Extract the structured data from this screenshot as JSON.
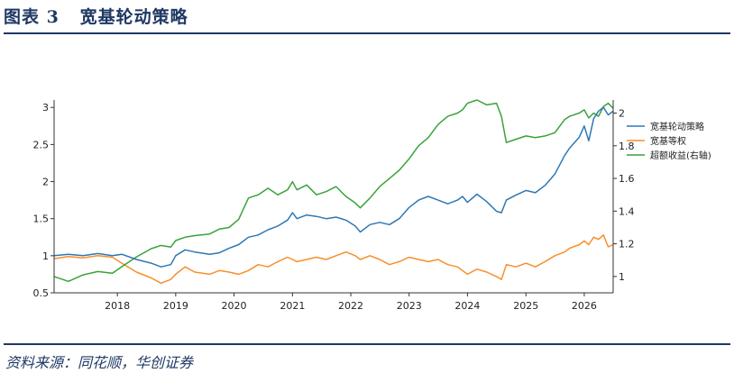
{
  "header": {
    "title": "图表 3   宽基轮动策略"
  },
  "footer": {
    "source": "资料来源：同花顺，华创证券"
  },
  "colors": {
    "accent": "#1f3864",
    "strategy": "#2e78b4",
    "equal_weight": "#f98e2b",
    "excess": "#3aa23a"
  },
  "chart_data": {
    "type": "line",
    "title": "",
    "xlabel": "",
    "ylabel": "",
    "x_ticks": [
      "2018",
      "2019",
      "2020",
      "2021",
      "2022",
      "2023",
      "2024",
      "2025",
      "2026"
    ],
    "x_range": [
      "2017-01-01",
      "2026-08-01"
    ],
    "left_axis": {
      "range": [
        0.5,
        3.1
      ],
      "ticks": [
        "0.5",
        "1",
        "1.5",
        "2",
        "2.5",
        "3"
      ]
    },
    "right_axis": {
      "range": [
        0.9,
        2.08
      ],
      "ticks": [
        "1",
        "1.2",
        "1.4",
        "1.6",
        "1.8",
        "2",
        "2",
        "2"
      ]
    },
    "legend_position": "right",
    "grid": false,
    "series": [
      {
        "name": "宽基轮动策略",
        "axis": "left",
        "color": "#2e78b4",
        "points": [
          [
            "2017-01-01",
            1.0
          ],
          [
            "2017-04-01",
            1.02
          ],
          [
            "2017-07-01",
            1.0
          ],
          [
            "2017-10-01",
            1.03
          ],
          [
            "2018-01-01",
            1.0
          ],
          [
            "2018-03-01",
            1.02
          ],
          [
            "2018-06-01",
            0.95
          ],
          [
            "2018-09-01",
            0.9
          ],
          [
            "2018-11-01",
            0.85
          ],
          [
            "2019-01-01",
            0.88
          ],
          [
            "2019-02-01",
            1.0
          ],
          [
            "2019-04-01",
            1.08
          ],
          [
            "2019-06-01",
            1.05
          ],
          [
            "2019-09-01",
            1.02
          ],
          [
            "2019-11-01",
            1.04
          ],
          [
            "2020-01-01",
            1.1
          ],
          [
            "2020-03-01",
            1.15
          ],
          [
            "2020-05-01",
            1.25
          ],
          [
            "2020-07-01",
            1.28
          ],
          [
            "2020-09-01",
            1.35
          ],
          [
            "2020-11-01",
            1.4
          ],
          [
            "2021-01-01",
            1.48
          ],
          [
            "2021-02-01",
            1.58
          ],
          [
            "2021-03-01",
            1.5
          ],
          [
            "2021-05-01",
            1.55
          ],
          [
            "2021-07-01",
            1.53
          ],
          [
            "2021-09-01",
            1.5
          ],
          [
            "2021-11-01",
            1.52
          ],
          [
            "2022-01-01",
            1.48
          ],
          [
            "2022-03-01",
            1.4
          ],
          [
            "2022-04-01",
            1.32
          ],
          [
            "2022-06-01",
            1.42
          ],
          [
            "2022-08-01",
            1.45
          ],
          [
            "2022-10-01",
            1.42
          ],
          [
            "2022-12-01",
            1.5
          ],
          [
            "2023-02-01",
            1.65
          ],
          [
            "2023-04-01",
            1.75
          ],
          [
            "2023-06-01",
            1.8
          ],
          [
            "2023-08-01",
            1.75
          ],
          [
            "2023-10-01",
            1.7
          ],
          [
            "2023-12-01",
            1.75
          ],
          [
            "2024-01-01",
            1.8
          ],
          [
            "2024-02-01",
            1.72
          ],
          [
            "2024-04-01",
            1.83
          ],
          [
            "2024-06-01",
            1.73
          ],
          [
            "2024-08-01",
            1.6
          ],
          [
            "2024-09-01",
            1.58
          ],
          [
            "2024-10-01",
            1.75
          ],
          [
            "2024-12-01",
            1.82
          ],
          [
            "2025-02-01",
            1.88
          ],
          [
            "2025-04-01",
            1.85
          ],
          [
            "2025-06-01",
            1.95
          ],
          [
            "2025-08-01",
            2.1
          ],
          [
            "2025-10-01",
            2.35
          ],
          [
            "2025-11-01",
            2.45
          ],
          [
            "2026-01-01",
            2.6
          ],
          [
            "2026-02-01",
            2.75
          ],
          [
            "2026-03-01",
            2.55
          ],
          [
            "2026-04-01",
            2.85
          ],
          [
            "2026-05-01",
            2.95
          ],
          [
            "2026-06-01",
            3.0
          ],
          [
            "2026-07-01",
            2.9
          ],
          [
            "2026-08-01",
            2.95
          ]
        ]
      },
      {
        "name": "宽基等权",
        "axis": "left",
        "color": "#f98e2b",
        "points": [
          [
            "2017-01-01",
            0.96
          ],
          [
            "2017-04-01",
            0.99
          ],
          [
            "2017-07-01",
            0.97
          ],
          [
            "2017-10-01",
            1.0
          ],
          [
            "2018-01-01",
            0.98
          ],
          [
            "2018-03-01",
            0.9
          ],
          [
            "2018-06-01",
            0.78
          ],
          [
            "2018-09-01",
            0.7
          ],
          [
            "2018-11-01",
            0.63
          ],
          [
            "2019-01-01",
            0.68
          ],
          [
            "2019-02-01",
            0.75
          ],
          [
            "2019-04-01",
            0.85
          ],
          [
            "2019-06-01",
            0.78
          ],
          [
            "2019-09-01",
            0.75
          ],
          [
            "2019-11-01",
            0.8
          ],
          [
            "2020-01-01",
            0.78
          ],
          [
            "2020-03-01",
            0.75
          ],
          [
            "2020-05-01",
            0.8
          ],
          [
            "2020-07-01",
            0.88
          ],
          [
            "2020-09-01",
            0.85
          ],
          [
            "2020-11-01",
            0.92
          ],
          [
            "2021-01-01",
            0.98
          ],
          [
            "2021-02-01",
            0.95
          ],
          [
            "2021-03-01",
            0.92
          ],
          [
            "2021-05-01",
            0.95
          ],
          [
            "2021-07-01",
            0.98
          ],
          [
            "2021-09-01",
            0.95
          ],
          [
            "2021-11-01",
            1.0
          ],
          [
            "2022-01-01",
            1.05
          ],
          [
            "2022-03-01",
            1.0
          ],
          [
            "2022-04-01",
            0.95
          ],
          [
            "2022-06-01",
            1.0
          ],
          [
            "2022-08-01",
            0.95
          ],
          [
            "2022-10-01",
            0.88
          ],
          [
            "2022-12-01",
            0.92
          ],
          [
            "2023-02-01",
            0.98
          ],
          [
            "2023-04-01",
            0.95
          ],
          [
            "2023-06-01",
            0.92
          ],
          [
            "2023-08-01",
            0.95
          ],
          [
            "2023-10-01",
            0.88
          ],
          [
            "2023-12-01",
            0.85
          ],
          [
            "2024-01-01",
            0.8
          ],
          [
            "2024-02-01",
            0.75
          ],
          [
            "2024-04-01",
            0.82
          ],
          [
            "2024-06-01",
            0.78
          ],
          [
            "2024-08-01",
            0.72
          ],
          [
            "2024-09-01",
            0.68
          ],
          [
            "2024-10-01",
            0.88
          ],
          [
            "2024-12-01",
            0.85
          ],
          [
            "2025-02-01",
            0.9
          ],
          [
            "2025-04-01",
            0.85
          ],
          [
            "2025-06-01",
            0.92
          ],
          [
            "2025-08-01",
            1.0
          ],
          [
            "2025-10-01",
            1.05
          ],
          [
            "2025-11-01",
            1.1
          ],
          [
            "2026-01-01",
            1.15
          ],
          [
            "2026-02-01",
            1.2
          ],
          [
            "2026-03-01",
            1.15
          ],
          [
            "2026-04-01",
            1.25
          ],
          [
            "2026-05-01",
            1.22
          ],
          [
            "2026-06-01",
            1.28
          ],
          [
            "2026-07-01",
            1.12
          ],
          [
            "2026-08-01",
            1.15
          ]
        ]
      },
      {
        "name": "超额收益(右轴)",
        "axis": "right",
        "color": "#3aa23a",
        "points": [
          [
            "2017-01-01",
            1.0
          ],
          [
            "2017-04-01",
            0.97
          ],
          [
            "2017-07-01",
            1.01
          ],
          [
            "2017-10-01",
            1.03
          ],
          [
            "2018-01-01",
            1.02
          ],
          [
            "2018-03-01",
            1.06
          ],
          [
            "2018-06-01",
            1.12
          ],
          [
            "2018-09-01",
            1.17
          ],
          [
            "2018-11-01",
            1.19
          ],
          [
            "2019-01-01",
            1.18
          ],
          [
            "2019-02-01",
            1.22
          ],
          [
            "2019-04-01",
            1.24
          ],
          [
            "2019-06-01",
            1.25
          ],
          [
            "2019-09-01",
            1.26
          ],
          [
            "2019-11-01",
            1.29
          ],
          [
            "2020-01-01",
            1.3
          ],
          [
            "2020-03-01",
            1.35
          ],
          [
            "2020-05-01",
            1.48
          ],
          [
            "2020-07-01",
            1.5
          ],
          [
            "2020-09-01",
            1.54
          ],
          [
            "2020-11-01",
            1.5
          ],
          [
            "2021-01-01",
            1.53
          ],
          [
            "2021-02-01",
            1.58
          ],
          [
            "2021-03-01",
            1.53
          ],
          [
            "2021-05-01",
            1.56
          ],
          [
            "2021-07-01",
            1.5
          ],
          [
            "2021-09-01",
            1.52
          ],
          [
            "2021-11-01",
            1.55
          ],
          [
            "2022-01-01",
            1.49
          ],
          [
            "2022-03-01",
            1.45
          ],
          [
            "2022-04-01",
            1.42
          ],
          [
            "2022-06-01",
            1.48
          ],
          [
            "2022-08-01",
            1.55
          ],
          [
            "2022-10-01",
            1.6
          ],
          [
            "2022-12-01",
            1.65
          ],
          [
            "2023-02-01",
            1.72
          ],
          [
            "2023-04-01",
            1.8
          ],
          [
            "2023-06-01",
            1.85
          ],
          [
            "2023-08-01",
            1.93
          ],
          [
            "2023-10-01",
            1.98
          ],
          [
            "2023-12-01",
            2.0
          ],
          [
            "2024-01-01",
            2.02
          ],
          [
            "2024-02-01",
            2.06
          ],
          [
            "2024-04-01",
            2.08
          ],
          [
            "2024-06-01",
            2.05
          ],
          [
            "2024-08-01",
            2.06
          ],
          [
            "2024-09-01",
            1.98
          ],
          [
            "2024-10-01",
            1.82
          ],
          [
            "2024-12-01",
            1.84
          ],
          [
            "2025-02-01",
            1.86
          ],
          [
            "2025-04-01",
            1.85
          ],
          [
            "2025-06-01",
            1.86
          ],
          [
            "2025-08-01",
            1.88
          ],
          [
            "2025-10-01",
            1.96
          ],
          [
            "2025-11-01",
            1.98
          ],
          [
            "2026-01-01",
            2.0
          ],
          [
            "2026-02-01",
            2.02
          ],
          [
            "2026-03-01",
            1.97
          ],
          [
            "2026-04-01",
            2.0
          ],
          [
            "2026-05-01",
            1.98
          ],
          [
            "2026-06-01",
            2.04
          ],
          [
            "2026-07-01",
            2.06
          ],
          [
            "2026-08-01",
            2.03
          ]
        ]
      }
    ]
  }
}
